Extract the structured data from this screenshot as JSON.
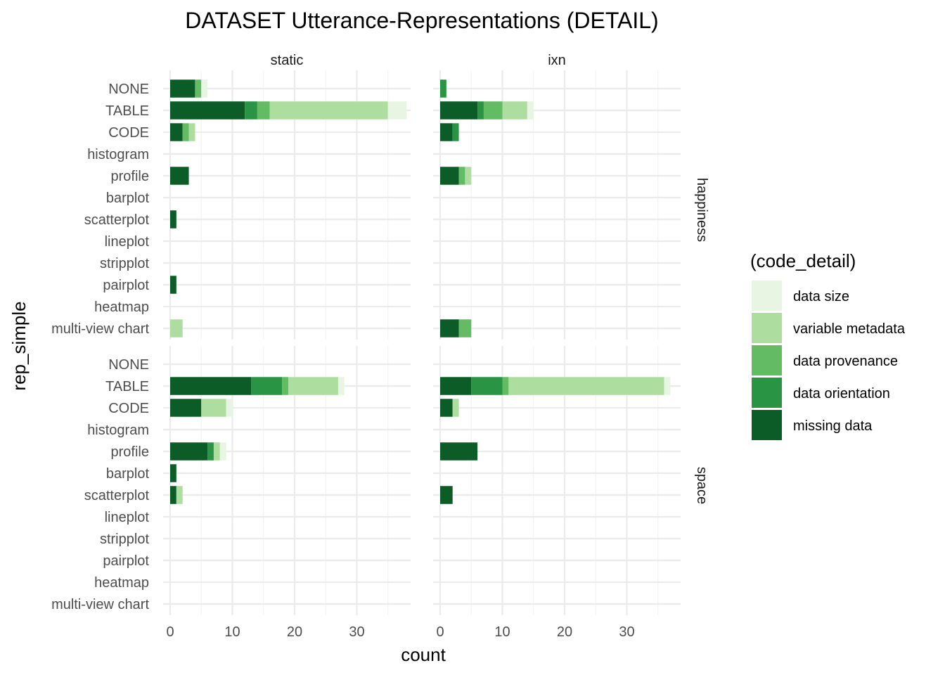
{
  "chart_data": {
    "type": "bar",
    "orientation": "horizontal",
    "stacked": true,
    "title": "DATASET Utterance-Representations (DETAIL)",
    "xlabel": "count",
    "ylabel": "rep_simple",
    "xlim": [
      0,
      39
    ],
    "x_ticks": [
      0,
      10,
      20,
      30
    ],
    "grid": true,
    "legend_position": "right",
    "legend_title": "(code_detail)",
    "series": [
      {
        "name": "data size",
        "color": "#e9f5e3"
      },
      {
        "name": "variable metadata",
        "color": "#aede9f"
      },
      {
        "name": "data provenance",
        "color": "#63bb63"
      },
      {
        "name": "data orientation",
        "color": "#2a9445"
      },
      {
        "name": "missing data",
        "color": "#0c5c27"
      }
    ],
    "stack_order_from_zero": [
      "missing data",
      "data orientation",
      "data provenance",
      "variable metadata",
      "data size"
    ],
    "categories": [
      "NONE",
      "TABLE",
      "CODE",
      "histogram",
      "profile",
      "barplot",
      "scatterplot",
      "lineplot",
      "stripplot",
      "pairplot",
      "heatmap",
      "multi-view chart"
    ],
    "col_facets": [
      "static",
      "ixn"
    ],
    "row_facets": [
      "happiness",
      "space"
    ],
    "panels": [
      {
        "row": "happiness",
        "col": "static",
        "values": {
          "missing data": [
            4,
            12,
            2,
            0,
            3,
            0,
            1,
            0,
            0,
            1,
            0,
            0
          ],
          "data orientation": [
            0,
            2,
            0,
            0,
            0,
            0,
            0,
            0,
            0,
            0,
            0,
            0
          ],
          "data provenance": [
            1,
            2,
            1,
            0,
            0,
            0,
            0,
            0,
            0,
            0,
            0,
            0
          ],
          "variable metadata": [
            0,
            19,
            1,
            0,
            0,
            0,
            0,
            0,
            0,
            0,
            0,
            2
          ],
          "data size": [
            1,
            3,
            0,
            0,
            0,
            0,
            0,
            0,
            0,
            0,
            0,
            0
          ]
        }
      },
      {
        "row": "happiness",
        "col": "ixn",
        "values": {
          "missing data": [
            0,
            6,
            2,
            0,
            3,
            0,
            0,
            0,
            0,
            0,
            0,
            3
          ],
          "data orientation": [
            1,
            1,
            1,
            0,
            0,
            0,
            0,
            0,
            0,
            0,
            0,
            0
          ],
          "data provenance": [
            0,
            3,
            0,
            0,
            1,
            0,
            0,
            0,
            0,
            0,
            0,
            2
          ],
          "variable metadata": [
            0,
            4,
            0,
            0,
            1,
            0,
            0,
            0,
            0,
            0,
            0,
            0
          ],
          "data size": [
            0,
            1,
            0,
            0,
            0,
            0,
            0,
            0,
            0,
            0,
            0,
            0
          ]
        }
      },
      {
        "row": "space",
        "col": "static",
        "values": {
          "missing data": [
            0,
            13,
            5,
            0,
            6,
            1,
            1,
            0,
            0,
            0,
            0,
            0
          ],
          "data orientation": [
            0,
            5,
            0,
            0,
            1,
            0,
            0,
            0,
            0,
            0,
            0,
            0
          ],
          "data provenance": [
            0,
            1,
            0,
            0,
            0,
            0,
            0,
            0,
            0,
            0,
            0,
            0
          ],
          "variable metadata": [
            0,
            8,
            4,
            0,
            1,
            0,
            1,
            0,
            0,
            0,
            0,
            0
          ],
          "data size": [
            0,
            1,
            1,
            0,
            1,
            0,
            0,
            0,
            0,
            0,
            0,
            0
          ]
        }
      },
      {
        "row": "space",
        "col": "ixn",
        "values": {
          "missing data": [
            0,
            5,
            2,
            0,
            6,
            0,
            2,
            0,
            0,
            0,
            0,
            0
          ],
          "data orientation": [
            0,
            5,
            0,
            0,
            0,
            0,
            0,
            0,
            0,
            0,
            0,
            0
          ],
          "data provenance": [
            0,
            1,
            0,
            0,
            0,
            0,
            0,
            0,
            0,
            0,
            0,
            0
          ],
          "variable metadata": [
            0,
            25,
            1,
            0,
            0,
            0,
            0,
            0,
            0,
            0,
            0,
            0
          ],
          "data size": [
            0,
            1,
            0,
            0,
            0,
            0,
            0,
            0,
            0,
            0,
            0,
            0
          ]
        }
      }
    ]
  }
}
